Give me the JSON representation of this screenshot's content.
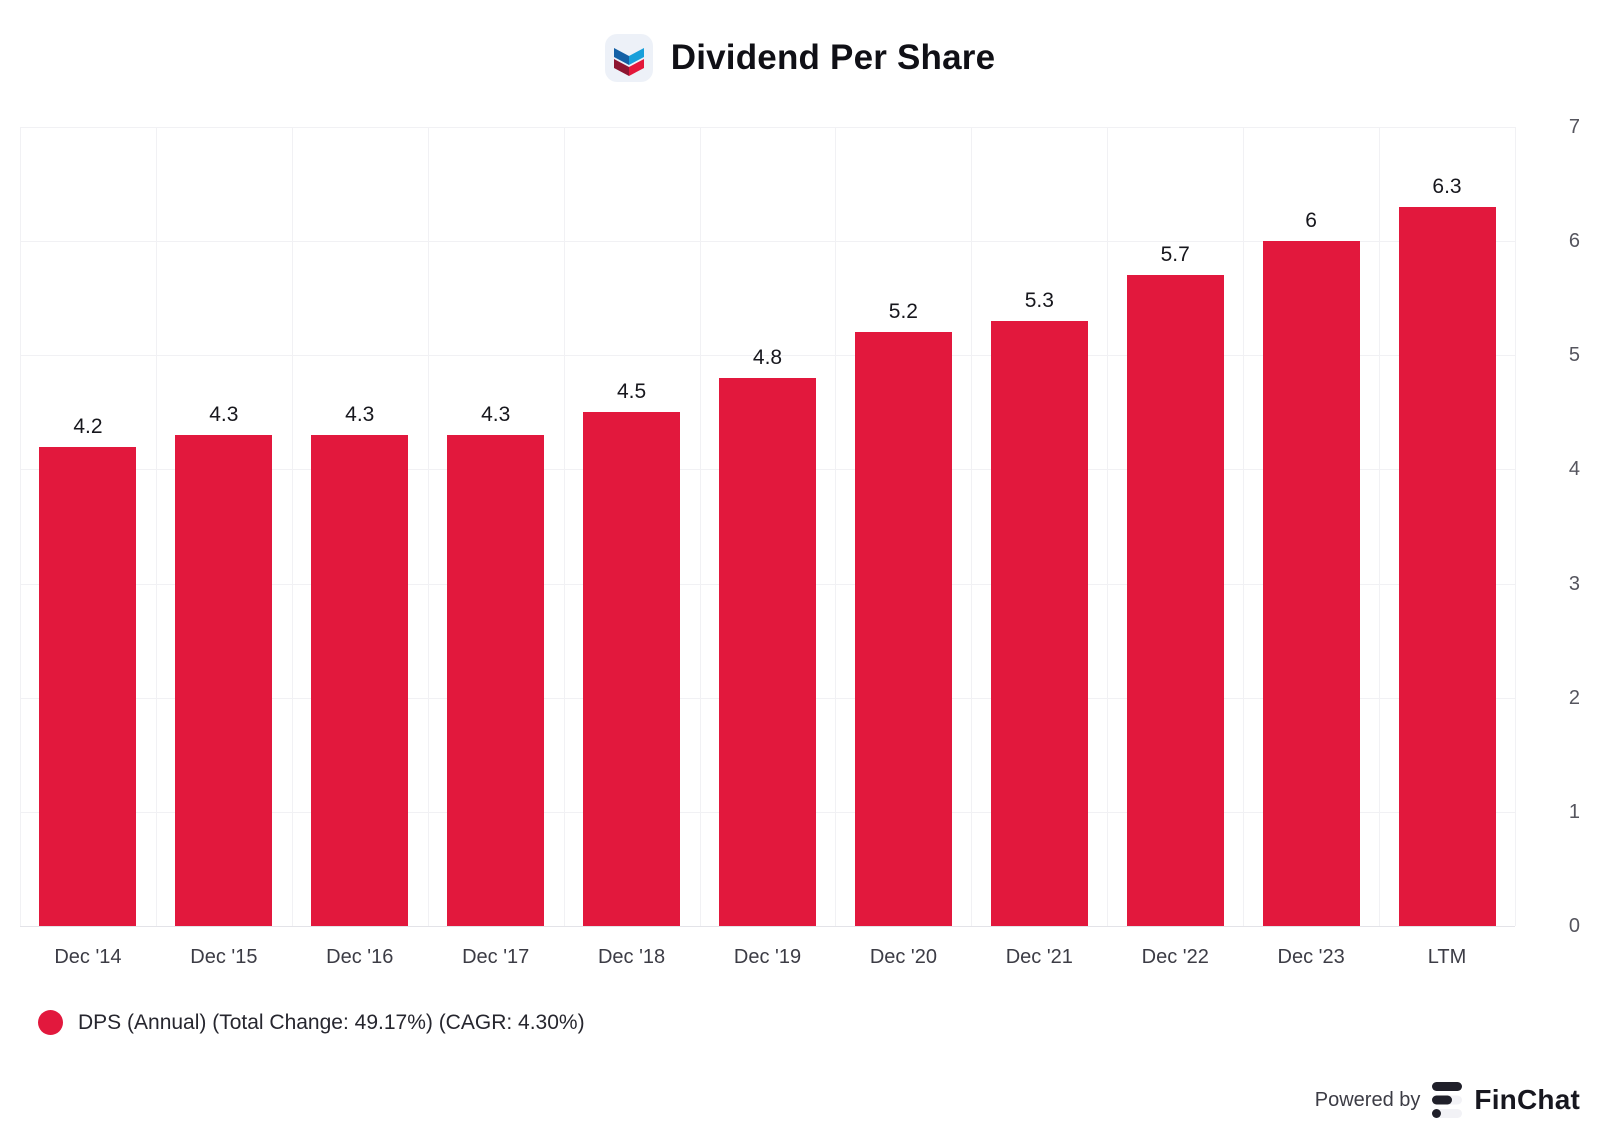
{
  "header": {
    "title": "Dividend Per Share",
    "logo": "chevron-logo"
  },
  "chart_data": {
    "type": "bar",
    "title": "Dividend Per Share",
    "series_name": "DPS (Annual)",
    "categories": [
      "Dec '14",
      "Dec '15",
      "Dec '16",
      "Dec '17",
      "Dec '18",
      "Dec '19",
      "Dec '20",
      "Dec '21",
      "Dec '22",
      "Dec '23",
      "LTM"
    ],
    "values": [
      4.2,
      4.3,
      4.3,
      4.3,
      4.5,
      4.8,
      5.2,
      5.3,
      5.7,
      6.0,
      6.3
    ],
    "bar_labels": [
      "4.2",
      "4.3",
      "4.3",
      "4.3",
      "4.5",
      "4.8",
      "5.2",
      "5.3",
      "5.7",
      "6",
      "6.3"
    ],
    "ylim": [
      0,
      7
    ],
    "yticks": [
      0,
      1,
      2,
      3,
      4,
      5,
      6,
      7
    ],
    "grid": true,
    "y_axis_side": "right",
    "legend_position": "bottom-left",
    "bar_color": "#e2183d"
  },
  "legend": {
    "marker_color": "#e2183d",
    "label": "DPS (Annual) (Total Change: 49.17%) (CAGR: 4.30%)"
  },
  "footer": {
    "powered_by": "Powered by",
    "brand": "FinChat"
  },
  "colors": {
    "bar": "#e2183d",
    "grid": "#f1f1f4",
    "axis_line": "#e3e3e8",
    "title_text": "#101016",
    "tick_text": "#55555e"
  }
}
